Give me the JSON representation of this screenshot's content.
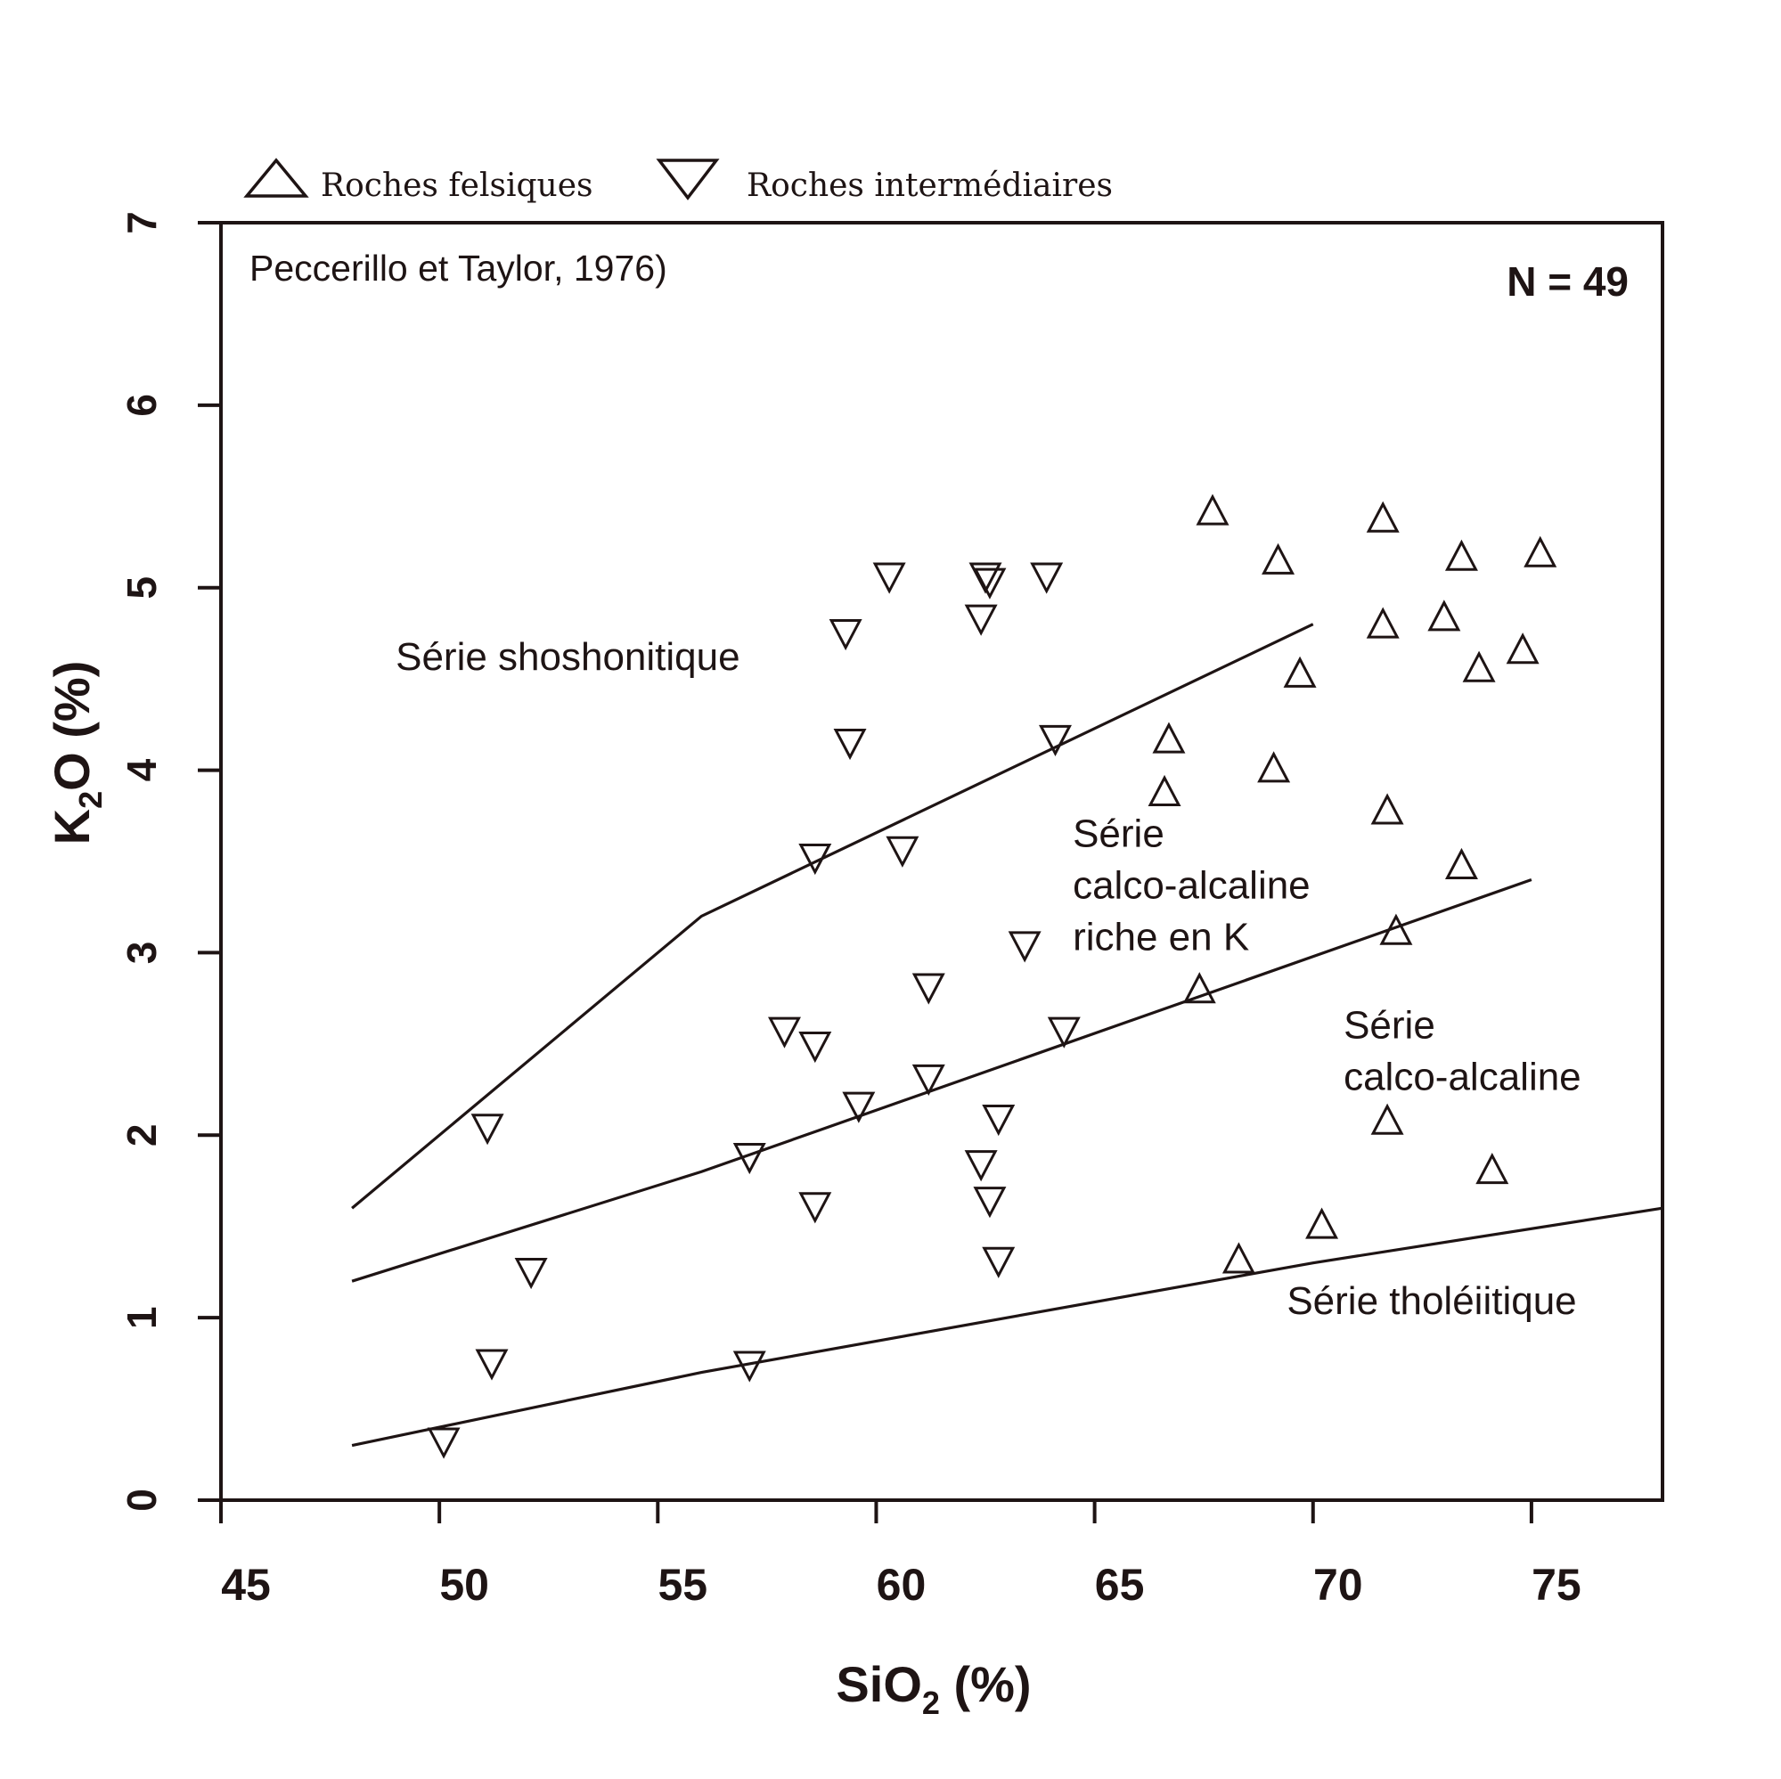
{
  "chart_data": {
    "type": "scatter",
    "xlabel_main": "SiO",
    "xlabel_sub": "2",
    "xlabel_unit": " (%)",
    "ylabel_main": "K",
    "ylabel_sub": "2",
    "ylabel_unit": "O (%)",
    "xlim": [
      45,
      78
    ],
    "ylim": [
      0,
      7
    ],
    "xticks": [
      45,
      50,
      55,
      60,
      65,
      70,
      75
    ],
    "yticks": [
      0,
      1,
      2,
      3,
      4,
      5,
      6,
      7
    ],
    "source_note": "Peccerillo et Taylor, 1976)",
    "count_label": "N = 49",
    "legend_position": "top-left, above plot",
    "colors": {
      "ink": "#1e1414",
      "background": "#ffffff"
    },
    "series": [
      {
        "name": "Roches felsiques",
        "marker": "triangle-up",
        "points": [
          [
            67.7,
            5.42
          ],
          [
            69.2,
            5.15
          ],
          [
            71.6,
            5.38
          ],
          [
            73.4,
            5.17
          ],
          [
            75.2,
            5.19
          ],
          [
            71.6,
            4.8
          ],
          [
            73.0,
            4.84
          ],
          [
            74.8,
            4.66
          ],
          [
            73.8,
            4.56
          ],
          [
            69.7,
            4.53
          ],
          [
            66.7,
            4.17
          ],
          [
            69.1,
            4.01
          ],
          [
            66.6,
            3.88
          ],
          [
            71.7,
            3.78
          ],
          [
            73.4,
            3.48
          ],
          [
            71.9,
            3.12
          ],
          [
            67.4,
            2.8
          ],
          [
            71.7,
            2.08
          ],
          [
            74.1,
            1.81
          ],
          [
            70.2,
            1.51
          ],
          [
            68.3,
            1.32
          ]
        ]
      },
      {
        "name": "Roches intermédiaires",
        "marker": "triangle-down",
        "points": [
          [
            60.3,
            5.06
          ],
          [
            62.5,
            5.06
          ],
          [
            62.6,
            5.03
          ],
          [
            63.9,
            5.06
          ],
          [
            59.3,
            4.75
          ],
          [
            62.4,
            4.83
          ],
          [
            59.4,
            4.15
          ],
          [
            64.1,
            4.17
          ],
          [
            58.6,
            3.52
          ],
          [
            60.6,
            3.56
          ],
          [
            63.4,
            3.04
          ],
          [
            61.2,
            2.81
          ],
          [
            57.9,
            2.57
          ],
          [
            58.6,
            2.49
          ],
          [
            64.3,
            2.57
          ],
          [
            61.2,
            2.31
          ],
          [
            59.6,
            2.16
          ],
          [
            62.8,
            2.09
          ],
          [
            51.1,
            2.04
          ],
          [
            57.1,
            1.88
          ],
          [
            62.4,
            1.84
          ],
          [
            58.6,
            1.61
          ],
          [
            62.6,
            1.64
          ],
          [
            52.1,
            1.25
          ],
          [
            62.8,
            1.31
          ],
          [
            51.2,
            0.75
          ],
          [
            57.1,
            0.74
          ],
          [
            50.1,
            0.32
          ]
        ]
      }
    ],
    "boundary_lines": [
      {
        "name": "shoshonitic / high-K calc-alkaline",
        "points": [
          [
            48,
            1.6
          ],
          [
            56,
            3.2
          ],
          [
            70,
            4.8
          ]
        ]
      },
      {
        "name": "high-K calc-alkaline / calc-alkaline",
        "points": [
          [
            48,
            1.2
          ],
          [
            56,
            1.8
          ],
          [
            75,
            3.4
          ]
        ]
      },
      {
        "name": "calc-alkaline / tholeiitic",
        "points": [
          [
            48,
            0.3
          ],
          [
            56,
            0.7
          ],
          [
            70,
            1.3
          ],
          [
            78,
            1.6
          ]
        ]
      }
    ],
    "field_labels": [
      {
        "lines": [
          "Série shoshonitique"
        ],
        "x": 49.0,
        "y": 4.55
      },
      {
        "lines": [
          "Série",
          "calco-alcaline",
          "riche en K"
        ],
        "x": 64.5,
        "y": 3.58
      },
      {
        "lines": [
          "Série",
          "calco-alcaline"
        ],
        "x": 70.7,
        "y": 2.53
      },
      {
        "lines": [
          "Série tholéiitique"
        ],
        "x": 69.4,
        "y": 1.02
      }
    ]
  }
}
